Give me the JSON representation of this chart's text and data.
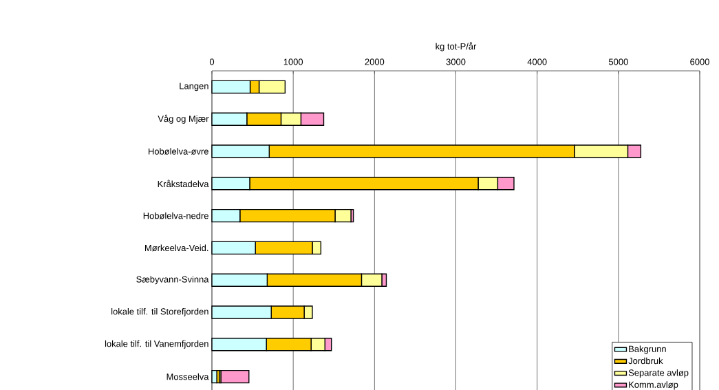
{
  "chart_data": {
    "type": "bar",
    "orientation": "horizontal",
    "stacked": true,
    "xlabel": "kg tot-P/år",
    "categories": [
      "Langen",
      "Våg og Mjær",
      "Hobølelva-øvre",
      "Kråkstadelva",
      "Hobølelva-nedre",
      "Mørkeelva-Veid.",
      "Sæbyvann-Svinna",
      "lokale tilf. til Storefjorden",
      "lokale tilf. til Vanemfjorden",
      "Mosseelva"
    ],
    "series": [
      {
        "name": "Bakgrunn",
        "color": "#ccffff",
        "values": [
          470,
          430,
          705,
          465,
          345,
          535,
          680,
          730,
          670,
          60
        ]
      },
      {
        "name": "Jordbruk",
        "color": "#ffcc00",
        "values": [
          110,
          420,
          3755,
          2810,
          1170,
          700,
          1160,
          405,
          550,
          30
        ]
      },
      {
        "name": "Separate avløp",
        "color": "#ffff99",
        "values": [
          320,
          245,
          655,
          240,
          195,
          105,
          250,
          100,
          170,
          20
        ]
      },
      {
        "name": "Komm.avløp",
        "color": "#ff99cc",
        "values": [
          0,
          280,
          160,
          200,
          30,
          0,
          55,
          0,
          80,
          345
        ]
      }
    ],
    "xlim": [
      0,
      6000
    ],
    "xticks": [
      0,
      1000,
      2000,
      3000,
      4000,
      5000,
      6000
    ],
    "grid": "x",
    "legend": "bottom right"
  }
}
